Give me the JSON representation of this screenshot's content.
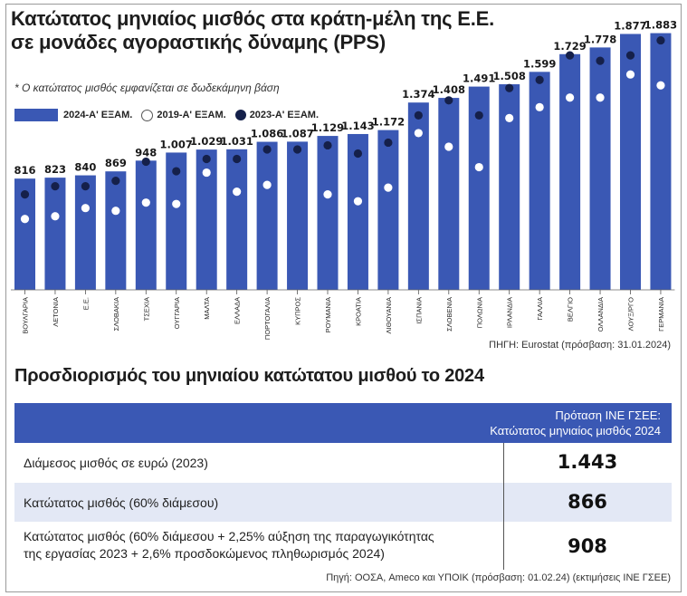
{
  "title_line1": "Κατώτατος μηνιαίος μισθός στα κράτη-μέλη της Ε.Ε.",
  "title_line2": "σε μονάδες αγοραστικής δύναμης (PPS)",
  "note": "* Ο κατώτατος μισθός εμφανίζεται σε δωδεκάμηνη βάση",
  "legend": {
    "bars": "2024-Α' ΕΞΑΜ.",
    "white_dots": "2019-Α' ΕΞΑΜ.",
    "dark_dots": "2023-Α' ΕΞΑΜ."
  },
  "colors": {
    "bar": "#3a58b4",
    "dot_2019": "#ffffff",
    "dot_2023": "#15204a",
    "table_header": "#3a58b4",
    "row_shade": "#e3e8f5"
  },
  "chart_data": {
    "type": "bar",
    "categories": [
      "ΒΟΥΛΓΑΡΙΑ",
      "ΛΕΤΟΝΙΑ",
      "Ε.Ε.",
      "ΣΛΟΒΑΚΙΑ",
      "ΤΣΕΧΙΑ",
      "ΟΥΓΓΑΡΙΑ",
      "ΜΑΛΤΑ",
      "ΕΛΛΑΔΑ",
      "ΠΟΡΤΟΓΑΛΙΑ",
      "ΚΥΠΡΟΣ",
      "ΡΟΥΜΑΝΙΑ",
      "ΚΡΟΑΤΙΑ",
      "ΛΙΘΟΥΑΝΙΑ",
      "ΙΣΠΑΝΙΑ",
      "ΣΛΟΒΕΝΙΑ",
      "ΠΟΛΩΝΙΑ",
      "ΙΡΛΑΝΔΙΑ",
      "ΓΑΛΛΙΑ",
      "ΒΕΛΓΙΟ",
      "ΟΛΛΑΝΔΙΑ",
      "ΛΟΥΞ/ΡΓΟ",
      "ΓΕΡΜΑΝΙΑ"
    ],
    "series": [
      {
        "name": "2024-Α' ΕΞΑΜ.",
        "values": [
          816,
          823,
          840,
          869,
          948,
          1007,
          1029,
          1031,
          1086,
          1087,
          1129,
          1143,
          1172,
          1374,
          1408,
          1491,
          1508,
          1599,
          1729,
          1778,
          1877,
          1883
        ],
        "labels": [
          "816",
          "823",
          "840",
          "869",
          "948",
          "1.007",
          "1.029",
          "1.031",
          "1.086",
          "1.087",
          "1.129",
          "1.143",
          "1.172",
          "1.374",
          "1.408",
          "1.491",
          "1.508",
          "1.599",
          "1.729",
          "1.778",
          "1.877",
          "1.883"
        ]
      },
      {
        "name": "2019-Α' ΕΞΑΜ.",
        "values": [
          520,
          540,
          600,
          580,
          640,
          630,
          860,
          720,
          770,
          null,
          700,
          650,
          750,
          1150,
          1050,
          900,
          1260,
          1340,
          1410,
          1410,
          1580,
          1500
        ]
      },
      {
        "name": "2023-Α' ΕΞΑΜ.",
        "values": [
          700,
          760,
          760,
          800,
          940,
          870,
          960,
          960,
          1030,
          1030,
          1060,
          1000,
          1080,
          1280,
          1390,
          1280,
          1480,
          1540,
          1720,
          1680,
          1720,
          1830
        ]
      }
    ],
    "ylim": [
      0,
      1960
    ],
    "source": "ΠΗΓΗ: Eurostat (πρόσβαση: 31.01.2024)"
  },
  "subtitle": "Προσδιορισμός του μηνιαίου κατώτατου μισθού το 2024",
  "table": {
    "header_line1": "Πρόταση ΙΝΕ ΓΣΕΕ:",
    "header_line2": "Κατώτατος μηνιαίος μισθός 2024",
    "rows": [
      {
        "label": "Διάμεσος μισθός σε ευρώ (2023)",
        "value": "1.443"
      },
      {
        "label": "Κατώτατος μισθός (60% διάμεσου)",
        "value": "866"
      },
      {
        "label_line1": "Κατώτατος μισθός (60% διάμεσου + 2,25% αύξηση της παραγωγικότητας",
        "label_line2": "της εργασίας 2023 + 2,6% προσδοκώμενος πληθωρισμός 2024)",
        "value": "908"
      }
    ]
  },
  "source2": "Πηγή: ΟΟΣΑ, Ameco και ΥΠΟΙΚ (πρόσβαση: 01.02.24) (εκτιμήσεις ΙΝΕ ΓΣΕΕ)"
}
